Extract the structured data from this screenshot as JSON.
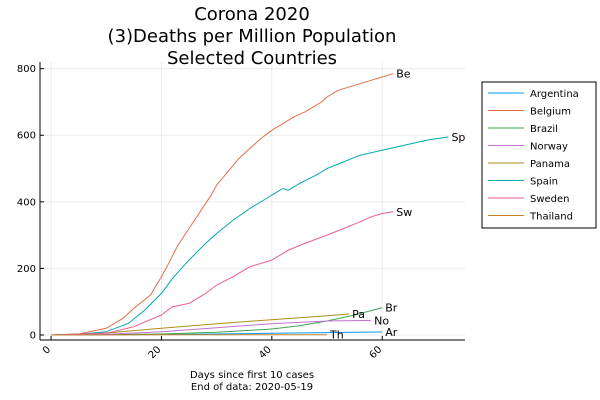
{
  "chart_data": {
    "type": "line",
    "title": [
      "Corona 2020",
      "(3)Deaths per Million Population",
      "Selected Countries"
    ],
    "xlabel": [
      "Days since first 10 cases",
      "End of data: 2020-05-19"
    ],
    "ylabel": "",
    "xlim": [
      -2,
      75
    ],
    "ylim": [
      -15,
      820
    ],
    "xticks": [
      0,
      20,
      40,
      60
    ],
    "yticks": [
      0,
      200,
      400,
      600,
      800
    ],
    "grid": true,
    "legend": "right",
    "series": [
      {
        "name": "Argentina",
        "color": "#009AFA",
        "end_label": "Ar",
        "x": [
          0,
          10,
          20,
          30,
          40,
          48,
          55,
          60
        ],
        "y": [
          0,
          0.5,
          1.5,
          3,
          5,
          7,
          8,
          9
        ]
      },
      {
        "name": "Belgium",
        "color": "#E36F47",
        "end_label": "Be",
        "x": [
          0,
          5,
          10,
          13,
          15,
          18,
          20,
          21,
          23,
          25,
          27,
          29,
          30,
          32,
          34,
          36,
          38,
          40,
          42,
          44,
          46,
          48,
          49,
          50,
          52,
          55,
          58,
          60,
          62
        ],
        "y": [
          0,
          3,
          20,
          50,
          80,
          120,
          175,
          205,
          270,
          320,
          370,
          420,
          450,
          490,
          530,
          560,
          590,
          615,
          635,
          655,
          670,
          690,
          700,
          715,
          735,
          750,
          765,
          775,
          785
        ]
      },
      {
        "name": "Brazil",
        "color": "#3EA44E",
        "end_label": "Br",
        "x": [
          0,
          10,
          20,
          30,
          40,
          45,
          50,
          55,
          60
        ],
        "y": [
          0,
          1,
          3,
          8,
          18,
          28,
          42,
          60,
          82
        ]
      },
      {
        "name": "Norway",
        "color": "#C371D2",
        "end_label": "No",
        "x": [
          0,
          10,
          20,
          30,
          40,
          50,
          58
        ],
        "y": [
          0,
          2,
          10,
          22,
          34,
          42,
          44
        ]
      },
      {
        "name": "Panama",
        "color": "#AC8D18",
        "end_label": "Pa",
        "x": [
          0,
          10,
          20,
          30,
          40,
          50,
          54
        ],
        "y": [
          0,
          6,
          20,
          34,
          46,
          58,
          63
        ]
      },
      {
        "name": "Spain",
        "color": "#00A9AD",
        "end_label": "Sp",
        "x": [
          0,
          5,
          10,
          14,
          17,
          20,
          22,
          25,
          28,
          30,
          33,
          36,
          39,
          41,
          42,
          43,
          45,
          48,
          50,
          53,
          56,
          60,
          64,
          68,
          72
        ],
        "y": [
          0,
          2,
          10,
          35,
          75,
          125,
          170,
          225,
          275,
          305,
          345,
          380,
          410,
          430,
          440,
          435,
          455,
          480,
          500,
          520,
          540,
          555,
          570,
          585,
          595
        ]
      },
      {
        "name": "Sweden",
        "color": "#ED5D92",
        "end_label": "Sw",
        "x": [
          0,
          10,
          15,
          20,
          22,
          25,
          28,
          30,
          33,
          36,
          40,
          43,
          46,
          50,
          53,
          56,
          58,
          60,
          62
        ],
        "y": [
          0,
          5,
          25,
          60,
          85,
          95,
          125,
          150,
          175,
          205,
          225,
          255,
          275,
          300,
          320,
          340,
          355,
          365,
          370
        ]
      },
      {
        "name": "Thailand",
        "color": "#C68125",
        "end_label": "Th",
        "x": [
          0,
          10,
          20,
          30,
          40,
          50
        ],
        "y": [
          0,
          0.3,
          0.5,
          0.6,
          0.8,
          0.8
        ]
      }
    ]
  }
}
